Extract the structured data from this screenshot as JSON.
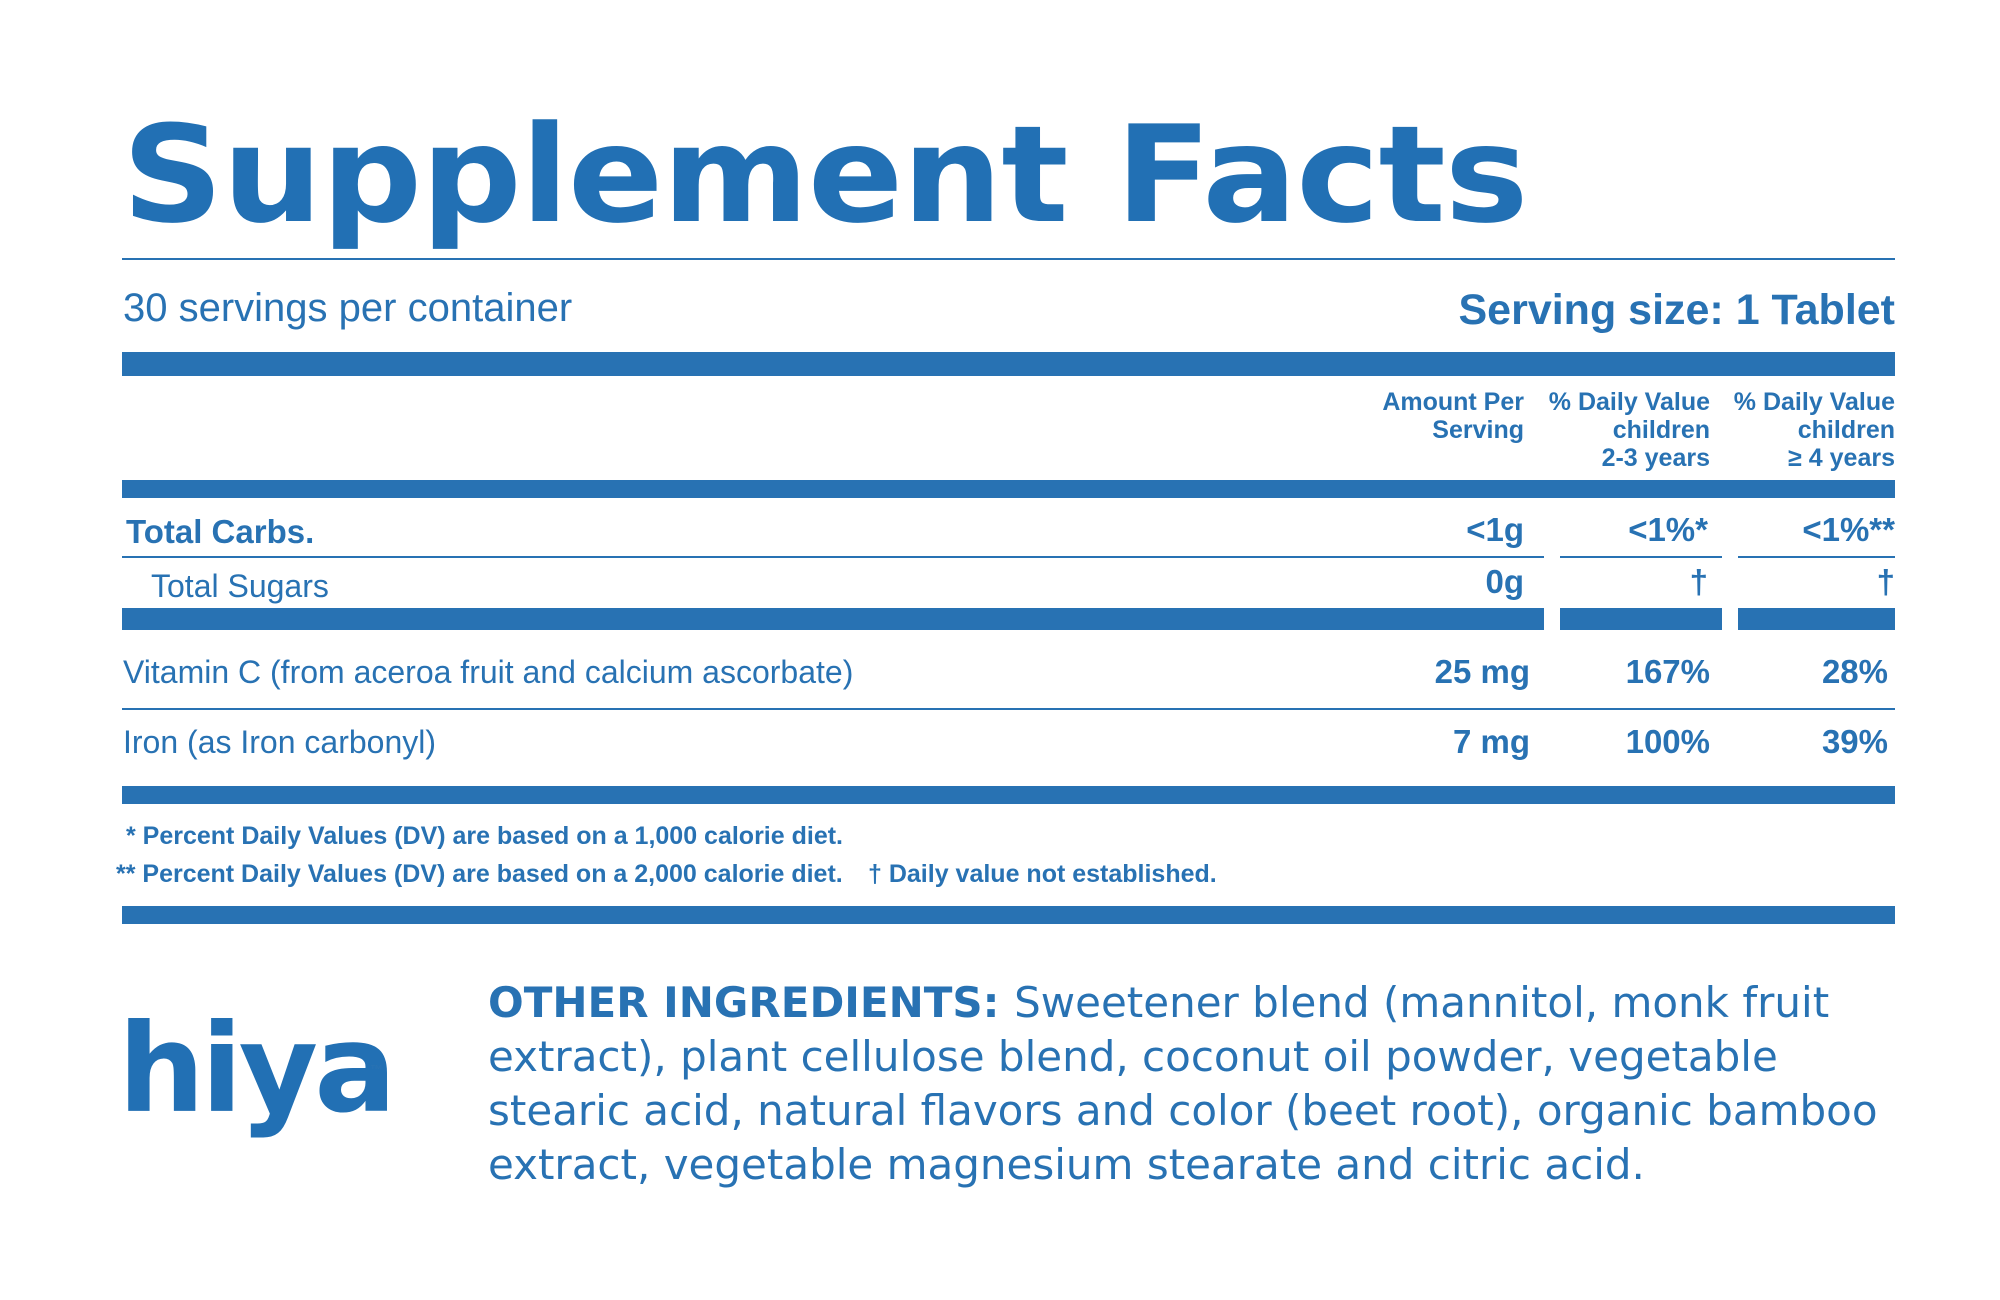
{
  "title": "Supplement Facts",
  "servings_per_container": "30 servings per container",
  "serving_size": "Serving size: 1 Tablet",
  "columns": {
    "amount": [
      "Amount Per",
      "Serving"
    ],
    "dv_children_2_3": [
      "% Daily Value",
      "children",
      "2-3 years"
    ],
    "dv_children_4": [
      "% Daily Value",
      "children",
      "≥ 4 years"
    ]
  },
  "rows": [
    {
      "label": "Total Carbs.",
      "amount": "<1g",
      "dv_2_3": "<1%*",
      "dv_4": "<1%**"
    },
    {
      "label": "Total Sugars",
      "amount": "0g",
      "dv_2_3": "†",
      "dv_4": "†"
    },
    {
      "label": "Vitamin C (from aceroa fruit and calcium ascorbate)",
      "amount": "25 mg",
      "dv_2_3": "167%",
      "dv_4": "28%"
    },
    {
      "label": "Iron (as Iron carbonyl)",
      "amount": "7 mg",
      "dv_2_3": "100%",
      "dv_4": "39%"
    }
  ],
  "footnotes": {
    "line1": "* Percent Daily Values (DV) are based on a 1,000 calorie diet.",
    "line2": "** Percent Daily Values (DV) are based on a 2,000 calorie diet.",
    "dagger": "† Daily value not established."
  },
  "brand": {
    "name": "hiya",
    "trademark": "™"
  },
  "ingredients": {
    "heading": "OTHER INGREDIENTS:",
    "text": "Sweetener blend (mannitol, monk fruit extract), plant cellulose blend, coconut oil powder, vegetable stearic acid, natural flavors and color (beet root), organic bamboo extract, vegetable magnesium stearate and citric acid."
  },
  "colors": {
    "primary": "#2872b3",
    "background": "#ffffff"
  }
}
